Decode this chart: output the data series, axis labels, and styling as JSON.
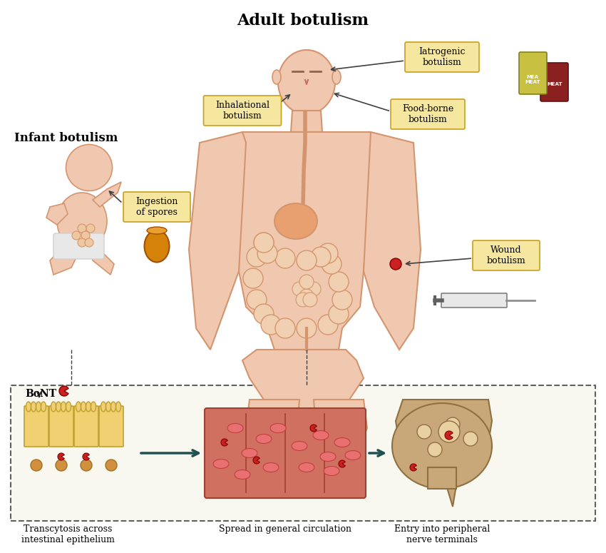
{
  "title": "Adult botulism",
  "infant_label": "Infant botulism",
  "bg_color": "#ffffff",
  "body_color": "#f0c8b0",
  "body_outline": "#d4956e",
  "label_box_color": "#f5e6a0",
  "label_box_edge": "#c8a020",
  "bottom_panel_bg": "#f8f8f0",
  "bottom_border_color": "#606060",
  "intestine_color": "#e8b090",
  "blood_vessel_color": "#c87060",
  "nerve_color": "#c8a070",
  "labels": {
    "iatrogenic": "Iatrogenic\nbotulism",
    "inhalational": "Inhalational\nbotulism",
    "foodborne": "Food-borne\nbotulism",
    "wound": "Wound\nbotulism",
    "ingestion": "Ingestion\nof spores"
  },
  "bottom_labels": {
    "transcytosis": "Transcytosis across\nintestinal epithelium",
    "spread": "Spread in general circulation",
    "entry": "Entry into peripheral\nnerve terminals"
  },
  "bont_label": "BoNT"
}
